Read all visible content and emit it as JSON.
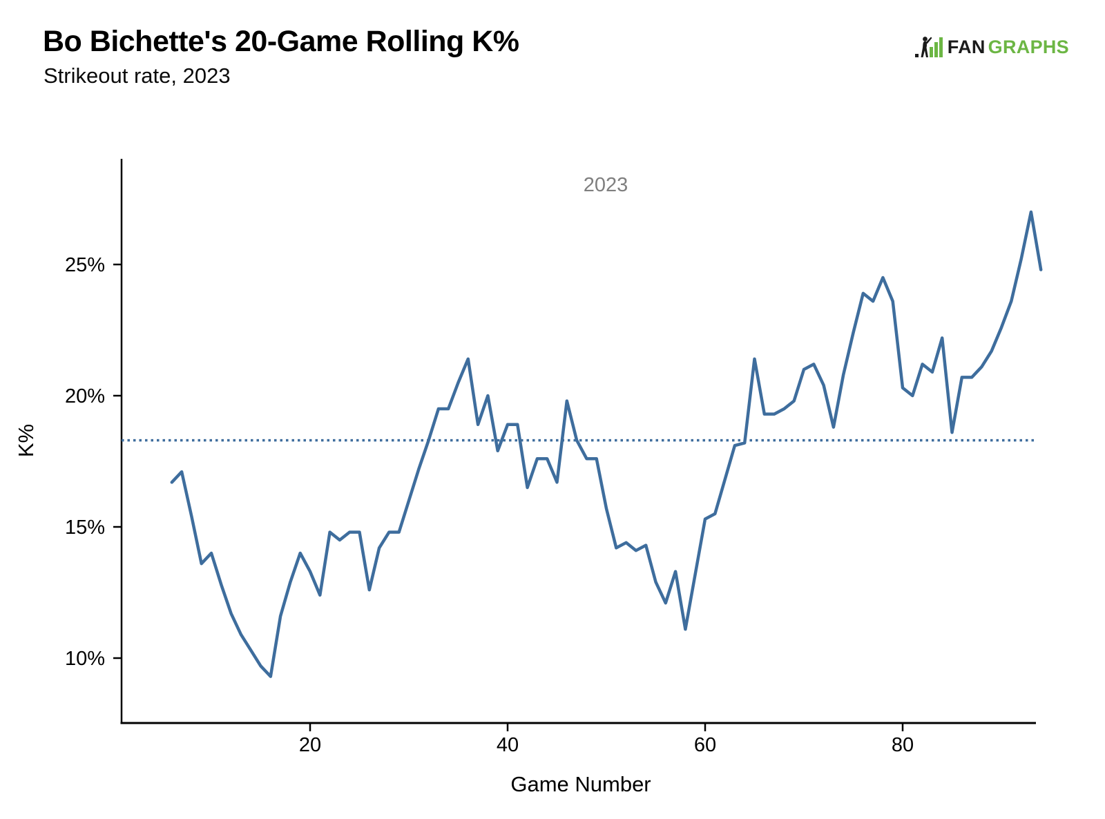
{
  "header": {
    "title": "Bo Bichette's 20-Game Rolling K%",
    "subtitle": "Strikeout rate, 2023",
    "logo_fan": "FAN",
    "logo_graphs": "GRAPHS",
    "logo_green": "#6CB644",
    "logo_dark": "#1b1b1b"
  },
  "chart_data": {
    "type": "line",
    "title": "Bo Bichette's 20-Game Rolling K%",
    "subtitle": "Strikeout rate, 2023",
    "series_label": "2023",
    "xlabel": "Game Number",
    "ylabel": "K%",
    "line_color": "#3E6D9D",
    "reference_line": {
      "value": 18.3,
      "style": "dotted",
      "color": "#3E6D9D"
    },
    "axis_color": "#000000",
    "grid": false,
    "legend_position": "top-center",
    "xlim": [
      1,
      93.5
    ],
    "ylim": [
      7.5,
      29.2
    ],
    "x_ticks": [
      20,
      40,
      60,
      80
    ],
    "x_tick_labels": [
      "20",
      "40",
      "60",
      "80"
    ],
    "y_ticks": [
      25,
      20,
      15,
      10
    ],
    "y_tick_labels": [
      "25%",
      "20%",
      "15%",
      "10%"
    ],
    "x": [
      6,
      7,
      8,
      9,
      10,
      11,
      12,
      13,
      14,
      15,
      16,
      17,
      18,
      19,
      20,
      21,
      22,
      23,
      24,
      25,
      26,
      27,
      28,
      29,
      30,
      31,
      32,
      33,
      34,
      35,
      36,
      37,
      38,
      39,
      40,
      41,
      42,
      43,
      44,
      45,
      46,
      47,
      48,
      49,
      50,
      51,
      52,
      53,
      54,
      55,
      56,
      57,
      58,
      59,
      60,
      61,
      62,
      63,
      64,
      65,
      66,
      67,
      68,
      69,
      70,
      71,
      72,
      73,
      74,
      75,
      76,
      77,
      78,
      79,
      80,
      81,
      82,
      83,
      84,
      85,
      86,
      87,
      88,
      89,
      90,
      91,
      92,
      93,
      94
    ],
    "y": [
      16.7,
      17.1,
      15.4,
      13.6,
      14.0,
      12.8,
      11.7,
      10.9,
      10.3,
      9.7,
      9.3,
      11.6,
      12.9,
      14.0,
      13.3,
      12.4,
      14.8,
      14.5,
      14.8,
      14.8,
      12.6,
      14.2,
      14.8,
      14.8,
      16.0,
      17.2,
      18.3,
      19.5,
      19.5,
      20.5,
      21.4,
      18.9,
      20.0,
      17.9,
      18.9,
      18.9,
      16.5,
      17.6,
      17.6,
      16.7,
      19.8,
      18.3,
      17.6,
      17.6,
      15.7,
      14.2,
      14.4,
      14.1,
      14.3,
      12.9,
      12.1,
      13.3,
      11.1,
      13.2,
      15.3,
      15.5,
      16.8,
      18.1,
      18.2,
      21.4,
      19.3,
      19.3,
      19.5,
      19.8,
      21.0,
      21.2,
      20.4,
      18.8,
      20.8,
      22.4,
      23.9,
      23.6,
      24.5,
      23.6,
      20.3,
      20.0,
      21.2,
      20.9,
      22.2,
      18.6,
      20.7,
      20.7,
      21.1,
      21.7,
      22.6,
      23.6,
      25.2,
      27.0,
      24.8
    ]
  }
}
